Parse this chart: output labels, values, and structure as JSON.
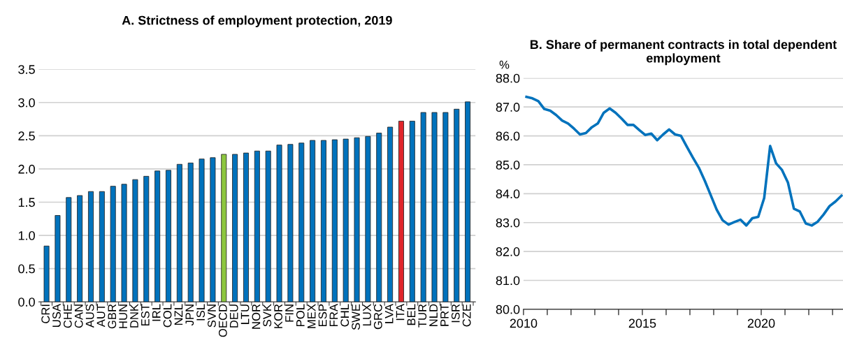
{
  "chart_data": [
    {
      "type": "bar",
      "title": "A. Strictness of employment protection, 2019",
      "categories": [
        "CRI",
        "USA",
        "CHE",
        "CAN",
        "AUS",
        "AUT",
        "GBR",
        "HUN",
        "DNK",
        "EST",
        "IRL",
        "COL",
        "NZL",
        "JPN",
        "ISL",
        "SVN",
        "OECD",
        "DEU",
        "LTU",
        "NOR",
        "SVK",
        "KOR",
        "FIN",
        "POL",
        "MEX",
        "ESP",
        "FRA",
        "CHL",
        "SWE",
        "LUX",
        "GRC",
        "LVA",
        "ITA",
        "BEL",
        "TUR",
        "NLD",
        "PRT",
        "ISR",
        "CZE"
      ],
      "values": [
        0.84,
        1.3,
        1.57,
        1.6,
        1.66,
        1.66,
        1.74,
        1.77,
        1.84,
        1.89,
        1.97,
        1.98,
        2.07,
        2.09,
        2.15,
        2.17,
        2.22,
        2.22,
        2.24,
        2.27,
        2.27,
        2.36,
        2.37,
        2.39,
        2.43,
        2.43,
        2.44,
        2.45,
        2.47,
        2.49,
        2.54,
        2.63,
        2.72,
        2.72,
        2.85,
        2.85,
        2.85,
        2.9,
        3.01
      ],
      "colors": [
        "#0072bc",
        "#0072bc",
        "#0072bc",
        "#0072bc",
        "#0072bc",
        "#0072bc",
        "#0072bc",
        "#0072bc",
        "#0072bc",
        "#0072bc",
        "#0072bc",
        "#0072bc",
        "#0072bc",
        "#0072bc",
        "#0072bc",
        "#0072bc",
        "#8cc63f",
        "#0072bc",
        "#0072bc",
        "#0072bc",
        "#0072bc",
        "#0072bc",
        "#0072bc",
        "#0072bc",
        "#0072bc",
        "#0072bc",
        "#0072bc",
        "#0072bc",
        "#0072bc",
        "#0072bc",
        "#0072bc",
        "#0072bc",
        "#e0262b",
        "#0072bc",
        "#0072bc",
        "#0072bc",
        "#0072bc",
        "#0072bc",
        "#0072bc"
      ],
      "ylim": [
        0,
        3.5
      ],
      "yticks": [
        {
          "value": 0,
          "label": "0.0"
        },
        {
          "value": 0.5,
          "label": "0.5"
        },
        {
          "value": 1,
          "label": "1.0"
        },
        {
          "value": 1.5,
          "label": "1.5"
        },
        {
          "value": 2,
          "label": "2.0"
        },
        {
          "value": 2.5,
          "label": "2.5"
        },
        {
          "value": 3,
          "label": "3.0"
        },
        {
          "value": 3.5,
          "label": "3.5"
        }
      ],
      "grid": "y",
      "legend": false
    },
    {
      "type": "line",
      "title": "B. Share of permanent contracts in total dependent employment",
      "ylabel": "%",
      "x": [
        2010.125,
        2010.375,
        2010.625,
        2010.875,
        2011.125,
        2011.375,
        2011.625,
        2011.875,
        2012.125,
        2012.375,
        2012.625,
        2012.875,
        2013.125,
        2013.375,
        2013.625,
        2013.875,
        2014.125,
        2014.375,
        2014.625,
        2014.875,
        2015.125,
        2015.375,
        2015.625,
        2015.875,
        2016.125,
        2016.375,
        2016.625,
        2016.875,
        2017.125,
        2017.375,
        2017.625,
        2017.875,
        2018.125,
        2018.375,
        2018.625,
        2018.875,
        2019.125,
        2019.375,
        2019.625,
        2019.875,
        2020.125,
        2020.375,
        2020.625,
        2020.875,
        2021.125,
        2021.375,
        2021.625,
        2021.875,
        2022.125,
        2022.375,
        2022.625,
        2022.875,
        2023.125,
        2023.375
      ],
      "series": [
        {
          "color": "#0072bc",
          "values": [
            87.35,
            87.3,
            87.2,
            86.93,
            86.87,
            86.72,
            86.53,
            86.43,
            86.25,
            86.05,
            86.1,
            86.3,
            86.43,
            86.8,
            86.95,
            86.8,
            86.6,
            86.38,
            86.38,
            86.2,
            86.03,
            86.08,
            85.85,
            86.05,
            86.22,
            86.05,
            86.0,
            85.62,
            85.25,
            84.9,
            84.45,
            83.95,
            83.45,
            83.08,
            82.93,
            83.02,
            83.1,
            82.9,
            83.15,
            83.2,
            83.85,
            85.65,
            85.05,
            84.82,
            84.38,
            83.48,
            83.38,
            82.97,
            82.9,
            83.03,
            83.28,
            83.57,
            83.73,
            83.93
          ]
        }
      ],
      "xlim": [
        2010,
        2023.44
      ],
      "xticks": [
        2010,
        {
          "value": 2011,
          "label": null
        },
        {
          "value": 2012,
          "label": null
        },
        {
          "value": 2013,
          "label": null
        },
        {
          "value": 2014,
          "label": null
        },
        2015,
        {
          "value": 2016,
          "label": null
        },
        {
          "value": 2017,
          "label": null
        },
        {
          "value": 2018,
          "label": null
        },
        {
          "value": 2019,
          "label": null
        },
        2020,
        {
          "value": 2021,
          "label": null
        },
        {
          "value": 2022,
          "label": null
        },
        {
          "value": 2023,
          "label": null
        }
      ],
      "ylim": [
        80,
        88
      ],
      "yticks": [
        {
          "value": 80,
          "label": "80.0"
        },
        {
          "value": 81,
          "label": "81.0"
        },
        {
          "value": 82,
          "label": "82.0"
        },
        {
          "value": 83,
          "label": "83.0"
        },
        {
          "value": 84,
          "label": "84.0"
        },
        {
          "value": 85,
          "label": "85.0"
        },
        {
          "value": 86,
          "label": "86.0"
        },
        {
          "value": 87,
          "label": "87.0"
        },
        {
          "value": 88,
          "label": "88.0"
        }
      ],
      "grid": "y",
      "legend": false,
      "marker": "none",
      "line_style": "solid"
    }
  ]
}
